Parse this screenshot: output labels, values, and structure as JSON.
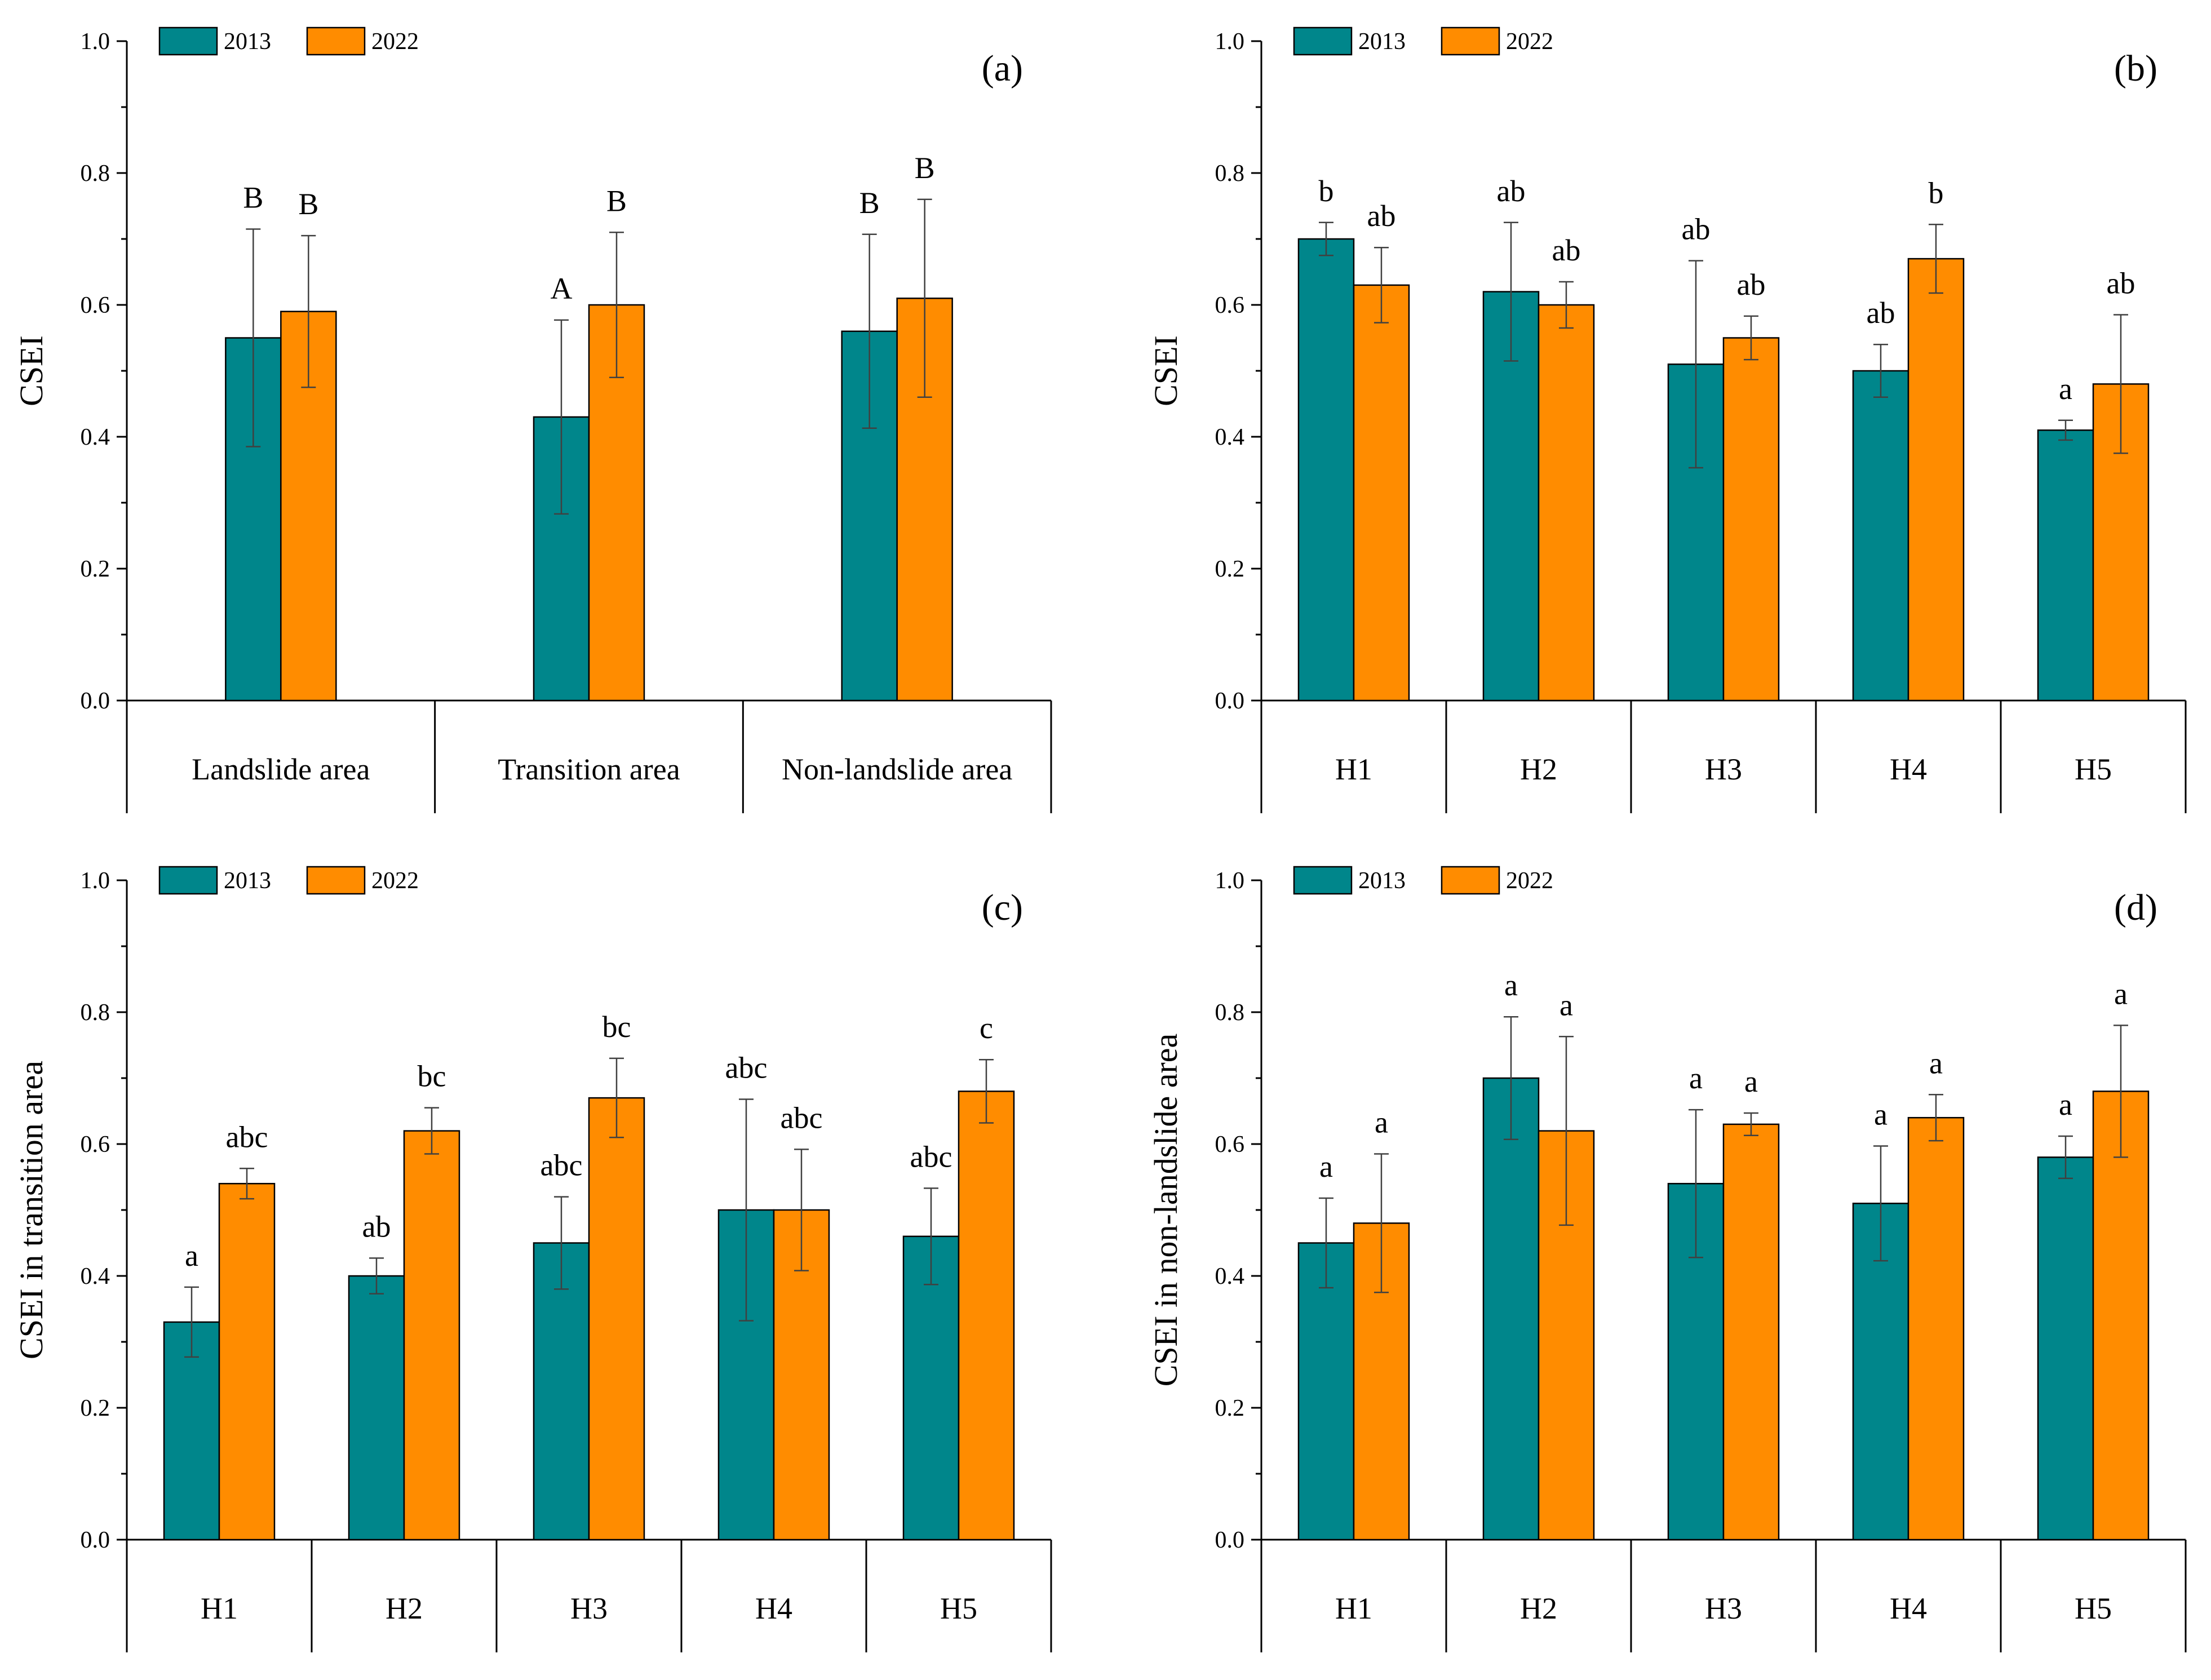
{
  "colors": {
    "s2013": "#00868B",
    "s2022": "#FF8C00",
    "axis": "#000000",
    "errorbar": "#404040"
  },
  "chart_data": [
    {
      "type": "bar",
      "panel_label": "(a)",
      "ylabel": "CSEI",
      "ylim": [
        0,
        1.0
      ],
      "yticks": [
        "0.0",
        "0.2",
        "0.4",
        "0.6",
        "0.8",
        "1.0"
      ],
      "categories": [
        "Landslide area",
        "Transition area",
        "Non-landslide area"
      ],
      "legend": [
        "2013",
        "2022"
      ],
      "series": [
        {
          "name": "2013",
          "values": [
            0.55,
            0.43,
            0.56
          ],
          "errors": [
            0.165,
            0.147,
            0.147
          ],
          "labels": [
            "B",
            "A",
            "B"
          ]
        },
        {
          "name": "2022",
          "values": [
            0.59,
            0.6,
            0.61
          ],
          "errors": [
            0.115,
            0.11,
            0.15
          ],
          "labels": [
            "B",
            "B",
            "B"
          ]
        }
      ]
    },
    {
      "type": "bar",
      "panel_label": "(b)",
      "ylabel": "CSEI",
      "ylim": [
        0,
        1.0
      ],
      "yticks": [
        "0.0",
        "0.2",
        "0.4",
        "0.6",
        "0.8",
        "1.0"
      ],
      "categories": [
        "H1",
        "H2",
        "H3",
        "H4",
        "H5"
      ],
      "legend": [
        "2013",
        "2022"
      ],
      "series": [
        {
          "name": "2013",
          "values": [
            0.7,
            0.62,
            0.51,
            0.5,
            0.41
          ],
          "errors": [
            0.025,
            0.105,
            0.157,
            0.04,
            0.015
          ],
          "labels": [
            "b",
            "ab",
            "ab",
            "ab",
            "a"
          ]
        },
        {
          "name": "2022",
          "values": [
            0.63,
            0.6,
            0.55,
            0.67,
            0.48
          ],
          "errors": [
            0.057,
            0.035,
            0.033,
            0.052,
            0.105
          ],
          "labels": [
            "ab",
            "ab",
            "ab",
            "b",
            "ab"
          ]
        }
      ]
    },
    {
      "type": "bar",
      "panel_label": "(c)",
      "ylabel": "CSEI in transition area",
      "ylim": [
        0,
        1.0
      ],
      "yticks": [
        "0.0",
        "0.2",
        "0.4",
        "0.6",
        "0.8",
        "1.0"
      ],
      "categories": [
        "H1",
        "H2",
        "H3",
        "H4",
        "H5"
      ],
      "legend": [
        "2013",
        "2022"
      ],
      "series": [
        {
          "name": "2013",
          "values": [
            0.33,
            0.4,
            0.45,
            0.5,
            0.46
          ],
          "errors": [
            0.053,
            0.027,
            0.07,
            0.168,
            0.073
          ],
          "labels": [
            "a",
            "ab",
            "abc",
            "abc",
            "abc"
          ]
        },
        {
          "name": "2022",
          "values": [
            0.54,
            0.62,
            0.67,
            0.5,
            0.68
          ],
          "errors": [
            0.023,
            0.035,
            0.06,
            0.092,
            0.048
          ],
          "labels": [
            "abc",
            "bc",
            "bc",
            "abc",
            "c"
          ]
        }
      ]
    },
    {
      "type": "bar",
      "panel_label": "(d)",
      "ylabel": "CSEI in non-landslide area",
      "ylim": [
        0,
        1.0
      ],
      "yticks": [
        "0.0",
        "0.2",
        "0.4",
        "0.6",
        "0.8",
        "1.0"
      ],
      "categories": [
        "H1",
        "H2",
        "H3",
        "H4",
        "H5"
      ],
      "legend": [
        "2013",
        "2022"
      ],
      "series": [
        {
          "name": "2013",
          "values": [
            0.45,
            0.7,
            0.54,
            0.51,
            0.58
          ],
          "errors": [
            0.068,
            0.093,
            0.112,
            0.087,
            0.032
          ],
          "labels": [
            "a",
            "a",
            "a",
            "a",
            "a"
          ]
        },
        {
          "name": "2022",
          "values": [
            0.48,
            0.62,
            0.63,
            0.64,
            0.68
          ],
          "errors": [
            0.105,
            0.143,
            0.017,
            0.035,
            0.1
          ],
          "labels": [
            "a",
            "a",
            "a",
            "a",
            "a"
          ]
        }
      ]
    }
  ]
}
